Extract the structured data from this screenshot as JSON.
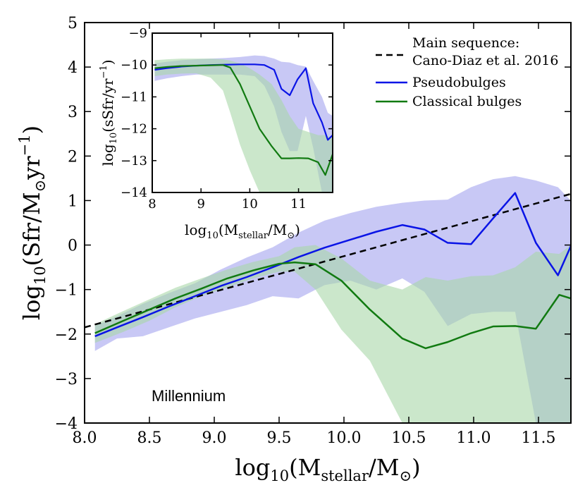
{
  "chart_data": [
    {
      "panel": "main",
      "type": "line",
      "xlabel": {
        "prefix": "log",
        "sub": "10",
        "open": "(M",
        "sub2": "stellar",
        "mid": "/M",
        "sub3": "⊙",
        "close": ")"
      },
      "ylabel": {
        "prefix": "log",
        "sub": "10",
        "open": "(Sfr/M",
        "sub2": "⊙",
        "mid": "yr",
        "sup": "−1",
        "close": ")"
      },
      "xlim": [
        8.0,
        11.75
      ],
      "ylim": [
        -4,
        5
      ],
      "xticks": [
        8.0,
        8.5,
        9.0,
        9.5,
        10.0,
        10.5,
        11.0,
        11.5
      ],
      "xtick_labels": [
        "8.0",
        "8.5",
        "9.0",
        "9.5",
        "10.0",
        "10.5",
        "11.0",
        "11.5"
      ],
      "yticks": [
        -4,
        -3,
        -2,
        -1,
        0,
        1,
        2,
        3,
        4,
        5
      ],
      "ytick_labels": [
        "−4",
        "−3",
        "−2",
        "−1",
        "0",
        "1",
        "2",
        "3",
        "4",
        "5"
      ],
      "annotation": "Millennium",
      "legend_position": "top-right",
      "legend": [
        {
          "label_line1": "Main sequence:",
          "label_line2": "Cano-Diaz et al. 2016",
          "style": "dashed",
          "color": "#000000"
        },
        {
          "label_line1": "Pseudobulges",
          "style": "solid",
          "color": "#0a14e6"
        },
        {
          "label_line1": "Classical bulges",
          "style": "solid",
          "color": "#117a11"
        }
      ],
      "series": [
        {
          "name": "Main sequence: Cano-Diaz et al. 2016",
          "color": "#000000",
          "style": "dashed",
          "x": [
            8.0,
            11.75
          ],
          "y": [
            -1.85,
            1.15
          ]
        },
        {
          "name": "Pseudobulges",
          "color": "#0a14e6",
          "fill": "#a3a3ee",
          "x": [
            8.08,
            8.25,
            8.45,
            8.65,
            8.85,
            9.05,
            9.25,
            9.45,
            9.65,
            9.85,
            10.05,
            10.25,
            10.45,
            10.62,
            10.8,
            10.98,
            11.15,
            11.32,
            11.48,
            11.65,
            11.75
          ],
          "y": [
            -2.05,
            -1.85,
            -1.62,
            -1.38,
            -1.15,
            -0.92,
            -0.72,
            -0.5,
            -0.27,
            -0.06,
            0.12,
            0.3,
            0.45,
            0.35,
            0.05,
            0.02,
            0.6,
            1.17,
            0.05,
            -0.68,
            -0.02
          ],
          "lower": [
            -2.38,
            -2.1,
            -2.05,
            -1.85,
            -1.65,
            -1.5,
            -1.35,
            -1.15,
            -1.2,
            -0.9,
            -0.8,
            -1.0,
            -0.75,
            -1.05,
            -1.82,
            -1.55,
            -1.5,
            -1.5,
            -4.0,
            -4.0,
            -4.0
          ],
          "upper": [
            -1.82,
            -1.6,
            -1.32,
            -1.08,
            -0.86,
            -0.55,
            -0.28,
            -0.05,
            0.28,
            0.55,
            0.72,
            0.86,
            0.95,
            1.0,
            1.02,
            1.3,
            1.48,
            1.55,
            1.45,
            1.3,
            1.0
          ]
        },
        {
          "name": "Classical bulges",
          "color": "#117a11",
          "fill": "#a8d7a8",
          "x": [
            8.08,
            8.3,
            8.5,
            8.7,
            8.9,
            9.1,
            9.3,
            9.5,
            9.62,
            9.78,
            9.98,
            10.2,
            10.45,
            10.63,
            10.8,
            10.98,
            11.15,
            11.32,
            11.48,
            11.66,
            11.75
          ],
          "y": [
            -1.98,
            -1.7,
            -1.45,
            -1.2,
            -0.98,
            -0.75,
            -0.57,
            -0.42,
            -0.39,
            -0.43,
            -0.8,
            -1.45,
            -2.1,
            -2.32,
            -2.18,
            -1.98,
            -1.83,
            -1.82,
            -1.88,
            -1.12,
            -1.2
          ],
          "lower": [
            -2.2,
            -1.95,
            -1.7,
            -1.4,
            -1.15,
            -0.95,
            -0.75,
            -0.6,
            -0.6,
            -1.0,
            -1.9,
            -2.6,
            -4.0,
            -4.0,
            -4.0,
            -4.0,
            -4.0,
            -4.0,
            -4.0,
            -4.0,
            -4.0
          ],
          "upper": [
            -1.78,
            -1.48,
            -1.22,
            -0.96,
            -0.75,
            -0.55,
            -0.38,
            -0.25,
            -0.05,
            0.0,
            -0.3,
            -0.8,
            -1.0,
            -0.72,
            -0.8,
            -0.7,
            -0.68,
            -0.5,
            -0.15,
            -0.2,
            0.0
          ]
        }
      ]
    },
    {
      "panel": "inset",
      "type": "line",
      "xlabel": {
        "prefix": "log",
        "sub": "10",
        "open": "(M",
        "sub2": "stellar",
        "mid": "/M",
        "sub3": "⊙",
        "close": ")"
      },
      "ylabel": {
        "prefix": "log",
        "sub": "10",
        "open": "(sSfr/yr",
        "sup": "−1",
        "close": ")"
      },
      "xlim": [
        8.0,
        11.7
      ],
      "ylim": [
        -14,
        -9
      ],
      "xticks": [
        8,
        9,
        10,
        11
      ],
      "xtick_labels": [
        "8",
        "9",
        "10",
        "11"
      ],
      "yticks": [
        -14,
        -13,
        -12,
        -11,
        -10,
        -9
      ],
      "ytick_labels": [
        "−14",
        "−13",
        "−12",
        "−11",
        "−10",
        "−9"
      ],
      "series": [
        {
          "name": "Pseudobulges",
          "color": "#0a14e6",
          "fill": "#a3a3ee",
          "x": [
            8.05,
            8.3,
            8.6,
            8.9,
            9.2,
            9.5,
            9.8,
            10.1,
            10.3,
            10.5,
            10.65,
            10.82,
            10.98,
            11.15,
            11.3,
            11.48,
            11.6,
            11.7
          ],
          "y": [
            -10.15,
            -10.1,
            -10.05,
            -10.02,
            -10.0,
            -9.99,
            -9.98,
            -9.98,
            -10.0,
            -10.15,
            -10.75,
            -10.95,
            -10.45,
            -10.1,
            -11.2,
            -11.8,
            -12.35,
            -12.2
          ],
          "lower": [
            -10.5,
            -10.42,
            -10.35,
            -10.3,
            -10.3,
            -10.3,
            -10.3,
            -10.35,
            -10.65,
            -11.3,
            -12.1,
            -12.7,
            -12.7,
            -11.6,
            -12.6,
            -14.0,
            -14.0,
            -14.0
          ],
          "upper": [
            -9.95,
            -9.9,
            -9.85,
            -9.82,
            -9.8,
            -9.78,
            -9.75,
            -9.7,
            -9.72,
            -9.8,
            -9.9,
            -9.92,
            -10.0,
            -10.05,
            -10.5,
            -11.0,
            -11.5,
            -11.6
          ]
        },
        {
          "name": "Classical bulges",
          "color": "#117a11",
          "fill": "#a8d7a8",
          "x": [
            8.05,
            8.3,
            8.6,
            8.9,
            9.2,
            9.45,
            9.6,
            9.8,
            10.0,
            10.2,
            10.45,
            10.65,
            10.82,
            11.0,
            11.2,
            11.4,
            11.55,
            11.7
          ],
          "y": [
            -10.1,
            -10.06,
            -10.03,
            -10.02,
            -10.01,
            -10.0,
            -10.08,
            -10.6,
            -11.3,
            -12.0,
            -12.55,
            -12.93,
            -12.93,
            -12.92,
            -12.93,
            -13.05,
            -13.45,
            -12.8
          ],
          "lower": [
            -10.35,
            -10.3,
            -10.27,
            -10.26,
            -10.4,
            -10.8,
            -11.5,
            -12.5,
            -13.3,
            -14.0,
            -14.0,
            -14.0,
            -14.0,
            -14.0,
            -14.0,
            -14.0,
            -14.0,
            -14.0
          ],
          "upper": [
            -9.85,
            -9.82,
            -9.8,
            -9.8,
            -9.8,
            -9.82,
            -9.86,
            -9.95,
            -10.1,
            -10.3,
            -10.6,
            -11.1,
            -11.6,
            -12.0,
            -12.1,
            -12.2,
            -12.2,
            -12.3
          ]
        }
      ]
    }
  ]
}
